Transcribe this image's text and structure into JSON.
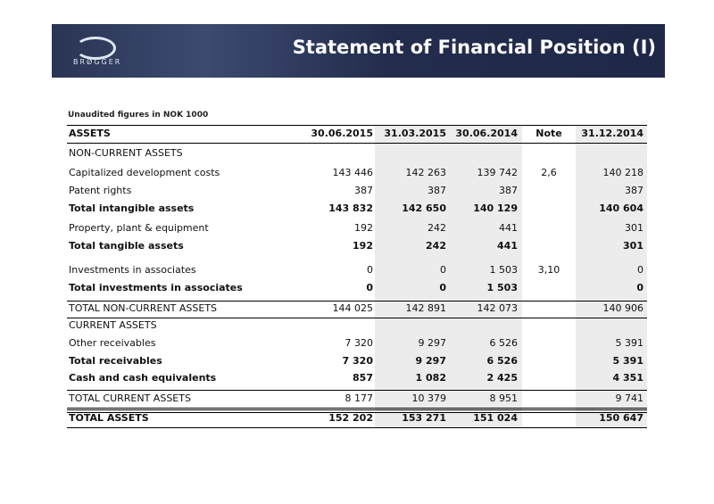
{
  "header": {
    "title": "Statement of Financial Position (I)",
    "logo": "BRØGGER"
  },
  "table": {
    "caption": "Unaudited figures in NOK 1000",
    "columns": [
      "ASSETS",
      "30.06.2015",
      "31.03.2015",
      "30.06.2014",
      "Note",
      "31.12.2014"
    ],
    "rows": [
      [
        "NON-CURRENT ASSETS",
        "",
        "",
        "",
        "",
        ""
      ],
      [
        "Capitalized development costs",
        "143 446",
        "142 263",
        "139 742",
        "2,6",
        "140 218"
      ],
      [
        "Patent rights",
        "387",
        "387",
        "387",
        "",
        "387"
      ],
      [
        "Total intangible assets",
        "143 832",
        "142 650",
        "140 129",
        "",
        "140 604"
      ],
      [
        "Property, plant & equipment",
        "192",
        "242",
        "441",
        "",
        "301"
      ],
      [
        "Total tangible assets",
        "192",
        "242",
        "441",
        "",
        "301"
      ],
      [
        "Investments in associates",
        "0",
        "0",
        "1 503",
        "3,10",
        "0"
      ],
      [
        "Total investments in associates",
        "0",
        "0",
        "1 503",
        "",
        "0"
      ],
      [
        "TOTAL NON-CURRENT ASSETS",
        "144 025",
        "142 891",
        "142 073",
        "",
        "140 906"
      ],
      [
        "CURRENT ASSETS",
        "",
        "",
        "",
        "",
        ""
      ],
      [
        "Other receivables",
        "7 320",
        "9 297",
        "6 526",
        "",
        "5 391"
      ],
      [
        "Total receivables",
        "7 320",
        "9 297",
        "6 526",
        "",
        "5 391"
      ],
      [
        "Cash and cash equivalents",
        "857",
        "1 082",
        "2 425",
        "",
        "4 351"
      ],
      [
        "TOTAL CURRENT ASSETS",
        "8 177",
        "10 379",
        "8 951",
        "",
        "9 741"
      ],
      [
        "TOTAL ASSETS",
        "152 202",
        "153 271",
        "151 024",
        "",
        "150 647"
      ]
    ]
  }
}
